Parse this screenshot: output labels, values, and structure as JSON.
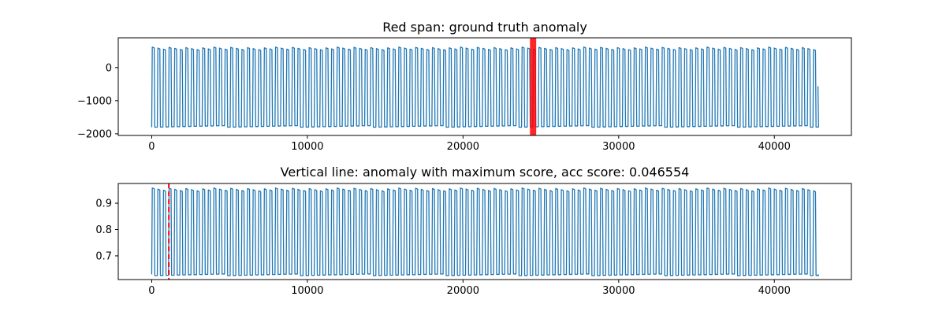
{
  "chart_data": [
    {
      "type": "line",
      "title": "Red span: ground truth anomaly",
      "xlabel": "",
      "ylabel": "",
      "xlim": [
        -2150,
        44950
      ],
      "ylim": [
        -2050,
        900
      ],
      "xticks": [
        0,
        10000,
        20000,
        30000,
        40000
      ],
      "xtick_labels": [
        "0",
        "10000",
        "20000",
        "30000",
        "40000"
      ],
      "yticks": [
        -2000,
        -1000,
        0
      ],
      "ytick_labels": [
        "−2000",
        "−1000",
        "0"
      ],
      "grid": false,
      "legend": "none",
      "series": [
        {
          "color": "#1f77b4",
          "pattern": "periodic-oscillation",
          "x_start": 0,
          "x_end": 42800,
          "period": 360,
          "high": 620,
          "low": -1800,
          "start_value": -1800,
          "end_value": -560
        }
      ],
      "annotations": [
        {
          "kind": "span",
          "x0": 24300,
          "x1": 24700,
          "color": "#ff0000"
        }
      ]
    },
    {
      "type": "line",
      "title": "Vertical line: anomaly with maximum score, acc score: 0.046554",
      "xlabel": "",
      "ylabel": "",
      "xlim": [
        -2150,
        44950
      ],
      "ylim": [
        0.61,
        0.975
      ],
      "xticks": [
        0,
        10000,
        20000,
        30000,
        40000
      ],
      "xtick_labels": [
        "0",
        "10000",
        "20000",
        "30000",
        "40000"
      ],
      "yticks": [
        0.7,
        0.8,
        0.9
      ],
      "ytick_labels": [
        "0.7",
        "0.8",
        "0.9"
      ],
      "grid": false,
      "legend": "none",
      "series": [
        {
          "color": "#1f77b4",
          "pattern": "periodic-oscillation",
          "x_start": 0,
          "x_end": 42800,
          "period": 360,
          "high": 0.958,
          "low": 0.625,
          "start_value": 0.63,
          "end_value": 0.63
        }
      ],
      "annotations": [
        {
          "kind": "vline",
          "x": 1100,
          "color": "#ff0000",
          "style": "dashed"
        }
      ]
    }
  ]
}
